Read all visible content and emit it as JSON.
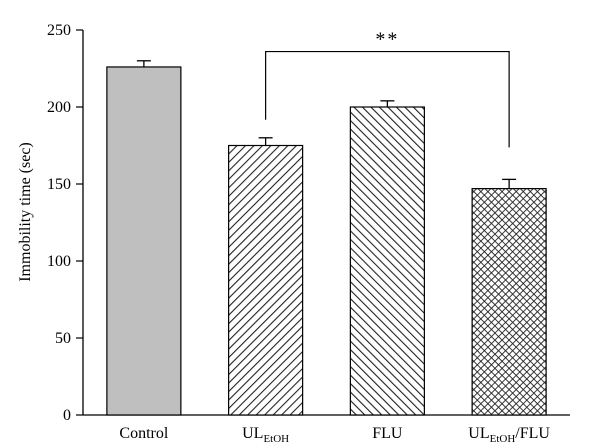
{
  "chart_data": {
    "type": "bar",
    "title": "",
    "xlabel": "",
    "ylabel": "Immobility time (sec)",
    "ylim": [
      0,
      250
    ],
    "yticks": [
      "0",
      "50",
      "100",
      "150",
      "200",
      "250"
    ],
    "grid": false,
    "categories": [
      {
        "main": "Control",
        "sub": "",
        "tail": ""
      },
      {
        "main": "UL",
        "sub": "EtOH",
        "tail": ""
      },
      {
        "main": "FLU",
        "sub": "",
        "tail": ""
      },
      {
        "main": "UL",
        "sub": "EtOH",
        "tail": "/FLU"
      }
    ],
    "values": [
      226,
      175,
      200,
      147
    ],
    "errors": [
      4,
      5,
      4,
      6
    ],
    "fills": [
      "solid-gray",
      "hatch-forward",
      "hatch-backward",
      "crosshatch"
    ],
    "bar_color": "#bfbfbf",
    "significance": {
      "from": 1,
      "to": 3,
      "label": "**"
    }
  }
}
